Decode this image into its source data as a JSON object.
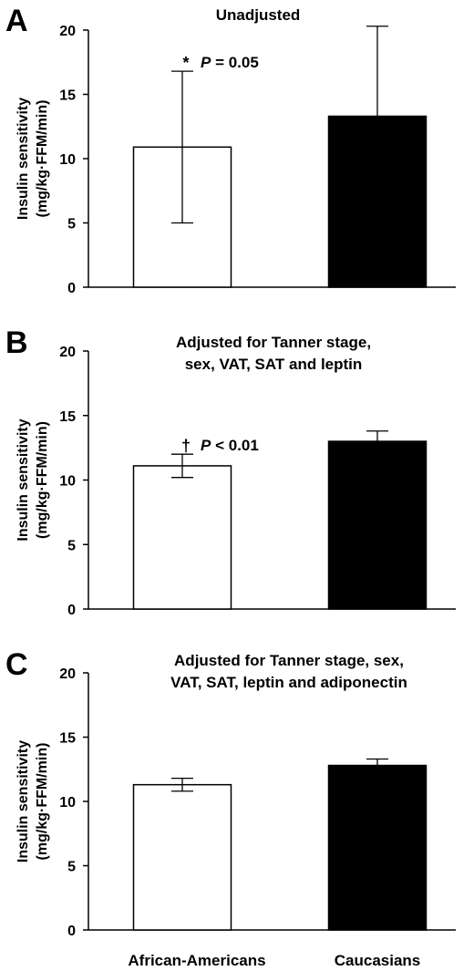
{
  "chart_data": [
    {
      "panel": "A",
      "type": "bar",
      "title_lines": [
        "Unadjusted"
      ],
      "ylabel_lines": [
        "Insulin sensitivity",
        "(mg/kg·FFM/min)"
      ],
      "ylim": [
        0,
        20
      ],
      "yticks": [
        "0",
        "5",
        "10",
        "15",
        "20"
      ],
      "categories": [
        "African-Americans",
        "Caucasians"
      ],
      "values": [
        10.9,
        13.3
      ],
      "errors": [
        5.9,
        7.0
      ],
      "bar_colors": [
        "#ffffff",
        "#000000"
      ],
      "annotation": {
        "mark": "*",
        "p_letter": "P",
        "p_text": " = 0.05"
      }
    },
    {
      "panel": "B",
      "type": "bar",
      "title_lines": [
        "Adjusted for Tanner stage,",
        "sex, VAT, SAT and leptin"
      ],
      "ylabel_lines": [
        "Insulin sensitivity",
        "(mg/kg·FFM/min)"
      ],
      "ylim": [
        0,
        20
      ],
      "yticks": [
        "0",
        "5",
        "10",
        "15",
        "20"
      ],
      "categories": [
        "African-Americans",
        "Caucasians"
      ],
      "values": [
        11.1,
        13.0
      ],
      "errors": [
        0.9,
        0.8
      ],
      "bar_colors": [
        "#ffffff",
        "#000000"
      ],
      "annotation": {
        "mark": "†",
        "p_letter": "P",
        "p_text": " < 0.01"
      }
    },
    {
      "panel": "C",
      "type": "bar",
      "title_lines": [
        "Adjusted for Tanner stage, sex,",
        "VAT, SAT, leptin and adiponectin"
      ],
      "ylabel_lines": [
        "Insulin sensitivity",
        "(mg/kg·FFM/min)"
      ],
      "ylim": [
        0,
        20
      ],
      "yticks": [
        "0",
        "5",
        "10",
        "15",
        "20"
      ],
      "categories": [
        "African-Americans",
        "Caucasians"
      ],
      "values": [
        11.3,
        12.8
      ],
      "errors": [
        0.5,
        0.5
      ],
      "bar_colors": [
        "#ffffff",
        "#000000"
      ],
      "annotation": null
    }
  ],
  "x_categories": [
    "African-Americans",
    "Caucasians"
  ]
}
